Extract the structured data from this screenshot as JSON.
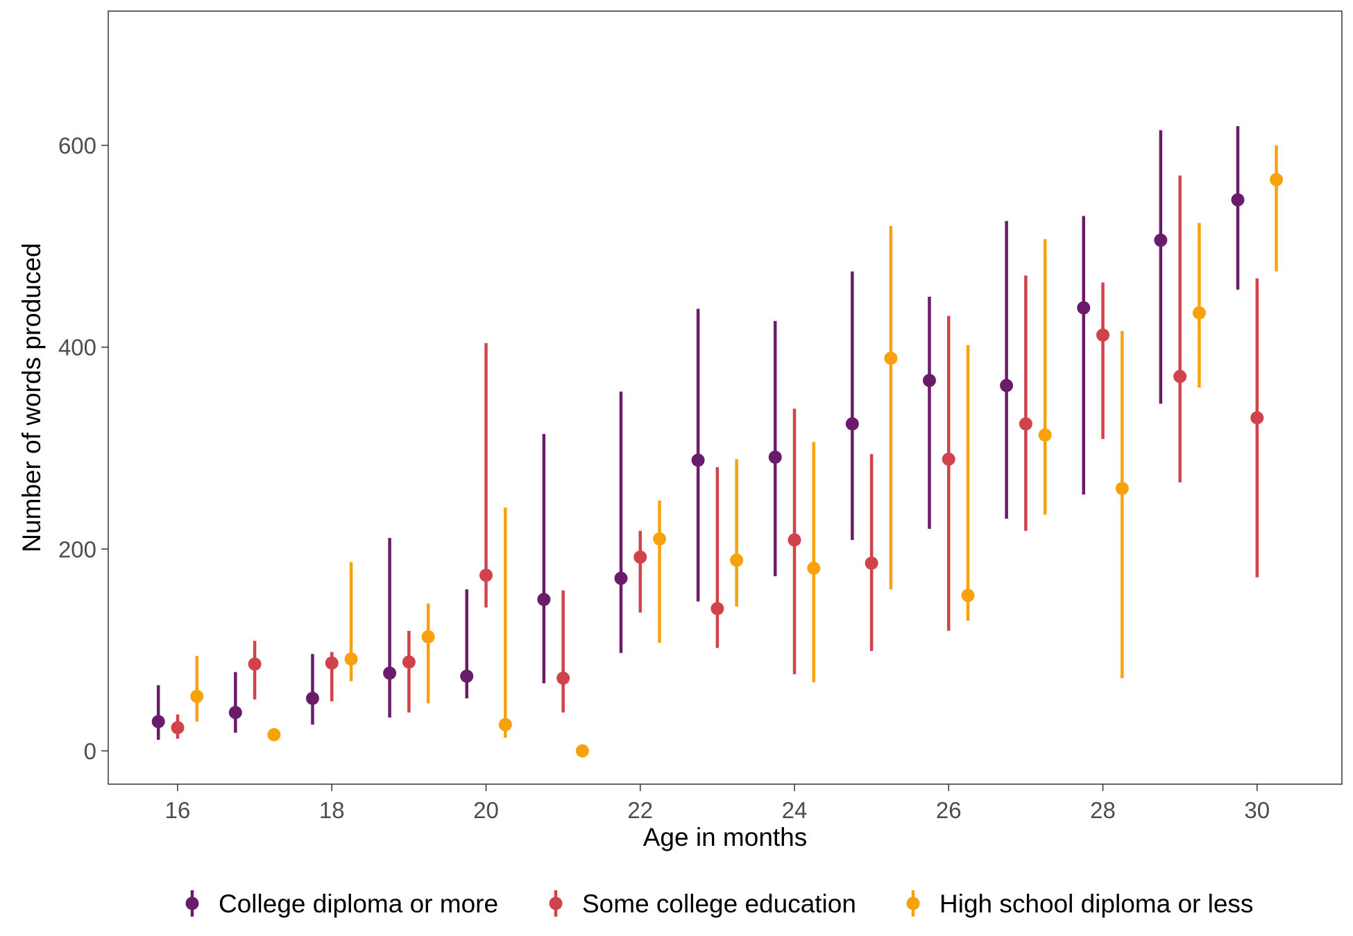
{
  "chart_data": {
    "type": "scatter",
    "subtype": "point-range",
    "xlabel": "Age in months",
    "ylabel": "Number of words produced",
    "xlim": [
      15.1,
      31.1
    ],
    "ylim": [
      -33,
      733
    ],
    "x_ticks": [
      16,
      18,
      20,
      22,
      24,
      26,
      28,
      30
    ],
    "y_ticks": [
      0,
      200,
      400,
      600
    ],
    "grid": false,
    "legend_position": "bottom",
    "series": [
      {
        "name": "College diploma or more",
        "color": "#6a1b6a",
        "points": [
          {
            "x": 16,
            "y": 29,
            "ymin": 11,
            "ymax": 65
          },
          {
            "x": 17,
            "y": 38,
            "ymin": 18,
            "ymax": 78
          },
          {
            "x": 18,
            "y": 52,
            "ymin": 26,
            "ymax": 96
          },
          {
            "x": 19,
            "y": 77,
            "ymin": 33,
            "ymax": 211
          },
          {
            "x": 20,
            "y": 74,
            "ymin": 52,
            "ymax": 160
          },
          {
            "x": 21,
            "y": 150,
            "ymin": 67,
            "ymax": 314
          },
          {
            "x": 22,
            "y": 171,
            "ymin": 97,
            "ymax": 356
          },
          {
            "x": 23,
            "y": 288,
            "ymin": 148,
            "ymax": 438
          },
          {
            "x": 24,
            "y": 291,
            "ymin": 173,
            "ymax": 426
          },
          {
            "x": 25,
            "y": 324,
            "ymin": 209,
            "ymax": 475
          },
          {
            "x": 26,
            "y": 367,
            "ymin": 220,
            "ymax": 450
          },
          {
            "x": 27,
            "y": 362,
            "ymin": 230,
            "ymax": 525
          },
          {
            "x": 28,
            "y": 439,
            "ymin": 254,
            "ymax": 530
          },
          {
            "x": 29,
            "y": 506,
            "ymin": 344,
            "ymax": 615
          },
          {
            "x": 30,
            "y": 546,
            "ymin": 457,
            "ymax": 619
          }
        ]
      },
      {
        "name": "Some college education",
        "color": "#d0434b",
        "points": [
          {
            "x": 16,
            "y": 23,
            "ymin": 12,
            "ymax": 36
          },
          {
            "x": 17,
            "y": 86,
            "ymin": 51,
            "ymax": 109
          },
          {
            "x": 18,
            "y": 87,
            "ymin": 49,
            "ymax": 98
          },
          {
            "x": 19,
            "y": 88,
            "ymin": 38,
            "ymax": 119
          },
          {
            "x": 20,
            "y": 174,
            "ymin": 142,
            "ymax": 404
          },
          {
            "x": 21,
            "y": 72,
            "ymin": 38,
            "ymax": 159
          },
          {
            "x": 22,
            "y": 192,
            "ymin": 137,
            "ymax": 218
          },
          {
            "x": 23,
            "y": 141,
            "ymin": 102,
            "ymax": 281
          },
          {
            "x": 24,
            "y": 209,
            "ymin": 76,
            "ymax": 339
          },
          {
            "x": 25,
            "y": 186,
            "ymin": 99,
            "ymax": 294
          },
          {
            "x": 26,
            "y": 289,
            "ymin": 119,
            "ymax": 431
          },
          {
            "x": 27,
            "y": 324,
            "ymin": 218,
            "ymax": 471
          },
          {
            "x": 28,
            "y": 412,
            "ymin": 309,
            "ymax": 464
          },
          {
            "x": 29,
            "y": 371,
            "ymin": 266,
            "ymax": 570
          },
          {
            "x": 30,
            "y": 330,
            "ymin": 172,
            "ymax": 468
          }
        ]
      },
      {
        "name": "High school diploma or less",
        "color": "#f7a20d",
        "points": [
          {
            "x": 16,
            "y": 54,
            "ymin": 29,
            "ymax": 94
          },
          {
            "x": 17,
            "y": 16,
            "ymin": 16,
            "ymax": 16
          },
          {
            "x": 18,
            "y": 91,
            "ymin": 69,
            "ymax": 187
          },
          {
            "x": 19,
            "y": 113,
            "ymin": 47,
            "ymax": 146
          },
          {
            "x": 20,
            "y": 26,
            "ymin": 13,
            "ymax": 241
          },
          {
            "x": 21,
            "y": 0,
            "ymin": 0,
            "ymax": 0
          },
          {
            "x": 22,
            "y": 210,
            "ymin": 107,
            "ymax": 248
          },
          {
            "x": 23,
            "y": 189,
            "ymin": 143,
            "ymax": 289
          },
          {
            "x": 24,
            "y": 181,
            "ymin": 68,
            "ymax": 306
          },
          {
            "x": 25,
            "y": 389,
            "ymin": 160,
            "ymax": 520
          },
          {
            "x": 26,
            "y": 154,
            "ymin": 129,
            "ymax": 402
          },
          {
            "x": 27,
            "y": 313,
            "ymin": 234,
            "ymax": 507
          },
          {
            "x": 28,
            "y": 260,
            "ymin": 72,
            "ymax": 416
          },
          {
            "x": 29,
            "y": 434,
            "ymin": 360,
            "ymax": 523
          },
          {
            "x": 30,
            "y": 566,
            "ymin": 475,
            "ymax": 600
          }
        ]
      }
    ]
  }
}
